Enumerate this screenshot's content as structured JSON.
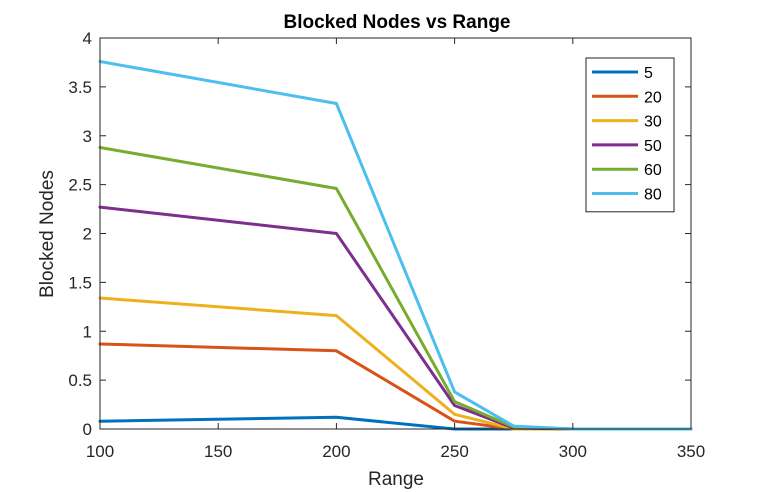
{
  "chart_data": {
    "type": "line",
    "title": "Blocked Nodes vs Range",
    "xlabel": "Range",
    "ylabel": "Blocked Nodes",
    "xlim": [
      100,
      350
    ],
    "ylim": [
      0,
      4
    ],
    "x_ticks": [
      100,
      150,
      200,
      250,
      300,
      350
    ],
    "y_ticks": [
      0,
      0.5,
      1,
      1.5,
      2,
      2.5,
      3,
      3.5,
      4
    ],
    "x_tick_labels": [
      "100",
      "150",
      "200",
      "250",
      "300",
      "350"
    ],
    "y_tick_labels": [
      "0",
      "0.5",
      "1",
      "1.5",
      "2",
      "2.5",
      "3",
      "3.5",
      "4"
    ],
    "x": [
      100,
      200,
      250,
      275,
      300,
      350
    ],
    "grid": false,
    "legend_position": "top-right",
    "series": [
      {
        "name": "5",
        "color": "#0072BD",
        "values": [
          0.08,
          0.12,
          0.0,
          0.0,
          0.0,
          0.0
        ]
      },
      {
        "name": "20",
        "color": "#D95319",
        "values": [
          0.87,
          0.8,
          0.08,
          0.0,
          0.0,
          0.0
        ]
      },
      {
        "name": "30",
        "color": "#EDB120",
        "values": [
          1.34,
          1.16,
          0.15,
          0.0,
          0.0,
          0.0
        ]
      },
      {
        "name": "50",
        "color": "#7E2F8E",
        "values": [
          2.27,
          2.0,
          0.24,
          0.01,
          0.0,
          0.0
        ]
      },
      {
        "name": "60",
        "color": "#77AC30",
        "values": [
          2.88,
          2.46,
          0.28,
          0.02,
          0.0,
          0.0
        ]
      },
      {
        "name": "80",
        "color": "#4DBEEE",
        "values": [
          3.76,
          3.33,
          0.38,
          0.03,
          0.0,
          0.0
        ]
      }
    ]
  }
}
